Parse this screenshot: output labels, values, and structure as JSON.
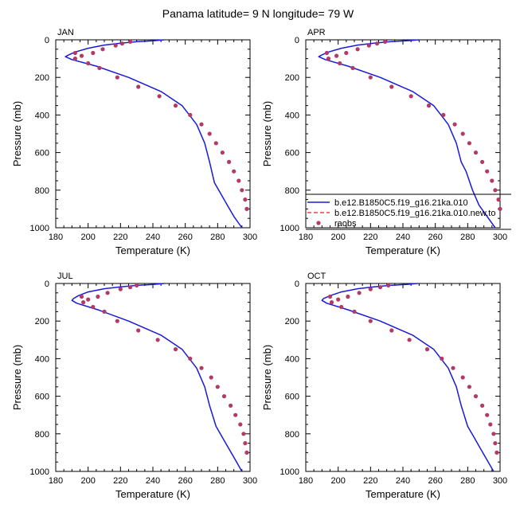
{
  "figure": {
    "title": "Panama  latitude= 9 N longitude= 79 W"
  },
  "legend": {
    "entries": [
      {
        "label": "b.e12.B1850C5.f19_g16.21ka.010",
        "color": "#1a1adb",
        "style": "solid"
      },
      {
        "label": "b.e12.B1850C5.f19_g16.21ka.010.new.to",
        "color": "#dd2222",
        "style": "dashed"
      },
      {
        "label": "raobs",
        "color": "#b23a66",
        "style": "marker"
      }
    ]
  },
  "chart_data": [
    {
      "type": "line",
      "panel": "JAN",
      "xlabel": "Temperature (K)",
      "ylabel": "Pressure (mb)",
      "xlim": [
        180,
        300
      ],
      "ylim": [
        1000,
        0
      ],
      "y_reversed": true,
      "xticks": [
        180,
        200,
        220,
        240,
        260,
        280,
        300
      ],
      "yticks": [
        0,
        200,
        400,
        600,
        800,
        1000
      ],
      "series": [
        {
          "name": "b.e12.B1850C5.f19_g16.21ka.010",
          "kind": "line",
          "x": [
            247,
            240,
            230,
            220,
            210,
            200,
            192,
            188,
            186,
            190,
            205,
            225,
            245,
            258,
            267,
            272,
            275,
            278,
            282,
            286,
            290,
            295
          ],
          "y": [
            0,
            5,
            10,
            18,
            28,
            45,
            65,
            80,
            90,
            105,
            140,
            200,
            275,
            350,
            450,
            550,
            650,
            760,
            820,
            880,
            940,
            1000
          ]
        },
        {
          "name": "b.e12.B1850C5.f19_g16.21ka.010.new.to",
          "kind": "line",
          "x": [
            247,
            240,
            230,
            220,
            210,
            200,
            192,
            188,
            186,
            190,
            205,
            225,
            245,
            258,
            267,
            272,
            275,
            278,
            282,
            286,
            290,
            295
          ],
          "y": [
            0,
            5,
            10,
            18,
            28,
            45,
            65,
            80,
            90,
            105,
            140,
            200,
            275,
            350,
            450,
            550,
            650,
            760,
            820,
            880,
            940,
            1000
          ]
        },
        {
          "name": "raobs",
          "kind": "markers",
          "x": [
            226,
            221,
            217,
            209,
            203,
            196,
            192,
            192,
            200,
            207,
            218,
            231,
            244,
            254,
            263,
            270,
            275,
            279,
            283,
            287,
            290,
            293,
            295,
            297,
            298
          ],
          "y": [
            10,
            20,
            30,
            50,
            70,
            85,
            100,
            70,
            125,
            150,
            200,
            250,
            300,
            350,
            400,
            450,
            500,
            550,
            600,
            650,
            700,
            750,
            800,
            850,
            900
          ]
        }
      ]
    },
    {
      "type": "line",
      "panel": "APR",
      "xlabel": "Temperature (K)",
      "ylabel": "Pressure (mb)",
      "xlim": [
        180,
        300
      ],
      "ylim": [
        1000,
        0
      ],
      "y_reversed": true,
      "xticks": [
        180,
        200,
        220,
        240,
        260,
        280,
        300
      ],
      "yticks": [
        0,
        200,
        400,
        600,
        800,
        1000
      ],
      "series": [
        {
          "name": "b.e12.B1850C5.f19_g16.21ka.010",
          "kind": "line",
          "x": [
            250,
            242,
            232,
            222,
            212,
            202,
            194,
            190,
            188,
            192,
            206,
            226,
            246,
            259,
            268,
            273,
            276,
            279,
            283,
            287,
            292,
            297
          ],
          "y": [
            0,
            5,
            10,
            18,
            28,
            45,
            65,
            80,
            90,
            105,
            140,
            200,
            275,
            350,
            450,
            550,
            650,
            700,
            800,
            880,
            940,
            1000
          ]
        },
        {
          "name": "b.e12.B1850C5.f19_g16.21ka.010.new.to",
          "kind": "line",
          "x": [
            250,
            242,
            232,
            222,
            212,
            202,
            194,
            190,
            188,
            192,
            206,
            226,
            246,
            259,
            268,
            273,
            276,
            279,
            283,
            287,
            292,
            297
          ],
          "y": [
            0,
            5,
            10,
            18,
            28,
            45,
            65,
            80,
            90,
            105,
            140,
            200,
            275,
            350,
            450,
            550,
            650,
            700,
            800,
            880,
            940,
            1000
          ]
        },
        {
          "name": "raobs",
          "kind": "markers",
          "x": [
            229,
            224,
            219,
            212,
            205,
            199,
            194,
            193,
            201,
            209,
            220,
            233,
            245,
            256,
            265,
            272,
            277,
            281,
            285,
            289,
            292,
            295,
            297,
            299,
            300
          ],
          "y": [
            10,
            20,
            30,
            50,
            70,
            85,
            100,
            70,
            125,
            150,
            200,
            250,
            300,
            350,
            400,
            450,
            500,
            550,
            600,
            650,
            700,
            750,
            800,
            850,
            900
          ]
        }
      ]
    },
    {
      "type": "line",
      "panel": "JUL",
      "xlabel": "Temperature (K)",
      "ylabel": "Pressure (mb)",
      "xlim": [
        180,
        300
      ],
      "ylim": [
        1000,
        0
      ],
      "y_reversed": true,
      "xticks": [
        180,
        200,
        220,
        240,
        260,
        280,
        300
      ],
      "yticks": [
        0,
        200,
        400,
        600,
        800,
        1000
      ],
      "series": [
        {
          "name": "b.e12.B1850C5.f19_g16.21ka.010",
          "kind": "line",
          "x": [
            247,
            240,
            230,
            220,
            210,
            200,
            194,
            191,
            190,
            193,
            206,
            225,
            245,
            258,
            267,
            272,
            275,
            279,
            283,
            287,
            291,
            295
          ],
          "y": [
            0,
            5,
            10,
            18,
            28,
            45,
            65,
            80,
            90,
            105,
            140,
            200,
            275,
            350,
            450,
            550,
            650,
            760,
            820,
            880,
            940,
            1000
          ]
        },
        {
          "name": "b.e12.B1850C5.f19_g16.21ka.010.new.to",
          "kind": "line",
          "x": [
            247,
            240,
            230,
            220,
            210,
            200,
            194,
            191,
            190,
            193,
            206,
            225,
            245,
            258,
            267,
            272,
            275,
            279,
            283,
            287,
            291,
            295
          ],
          "y": [
            0,
            5,
            10,
            18,
            28,
            45,
            65,
            80,
            90,
            105,
            140,
            200,
            275,
            350,
            450,
            550,
            650,
            760,
            820,
            880,
            940,
            1000
          ]
        },
        {
          "name": "raobs",
          "kind": "markers",
          "x": [
            230,
            226,
            220,
            212,
            206,
            200,
            197,
            196,
            203,
            210,
            218,
            231,
            243,
            254,
            263,
            270,
            276,
            280,
            284,
            288,
            291,
            294,
            296,
            297,
            298
          ],
          "y": [
            10,
            20,
            30,
            50,
            70,
            85,
            100,
            70,
            125,
            150,
            200,
            250,
            300,
            350,
            400,
            450,
            500,
            550,
            600,
            650,
            700,
            750,
            800,
            850,
            900
          ]
        }
      ]
    },
    {
      "type": "line",
      "panel": "OCT",
      "xlabel": "Temperature (K)",
      "ylabel": "Pressure (mb)",
      "xlim": [
        180,
        300
      ],
      "ylim": [
        1000,
        0
      ],
      "y_reversed": true,
      "xticks": [
        180,
        200,
        220,
        240,
        260,
        280,
        300
      ],
      "yticks": [
        0,
        200,
        400,
        600,
        800,
        1000
      ],
      "series": [
        {
          "name": "b.e12.B1850C5.f19_g16.21ka.010",
          "kind": "line",
          "x": [
            249,
            242,
            232,
            222,
            212,
            202,
            195,
            191,
            190,
            193,
            206,
            226,
            246,
            259,
            268,
            273,
            276,
            280,
            284,
            288,
            292,
            296
          ],
          "y": [
            0,
            5,
            10,
            18,
            28,
            45,
            65,
            80,
            90,
            105,
            140,
            200,
            275,
            350,
            450,
            550,
            650,
            760,
            820,
            880,
            940,
            1000
          ]
        },
        {
          "name": "b.e12.B1850C5.f19_g16.21ka.010.new.to",
          "kind": "line",
          "x": [
            249,
            242,
            232,
            222,
            212,
            202,
            195,
            191,
            190,
            193,
            206,
            226,
            246,
            259,
            268,
            273,
            276,
            280,
            284,
            288,
            292,
            296
          ],
          "y": [
            0,
            5,
            10,
            18,
            28,
            45,
            65,
            80,
            90,
            105,
            140,
            200,
            275,
            350,
            450,
            550,
            650,
            760,
            820,
            880,
            940,
            1000
          ]
        },
        {
          "name": "raobs",
          "kind": "markers",
          "x": [
            231,
            226,
            220,
            213,
            206,
            200,
            196,
            195,
            202,
            210,
            220,
            233,
            244,
            255,
            264,
            271,
            277,
            281,
            285,
            289,
            292,
            294,
            296,
            297,
            298
          ],
          "y": [
            10,
            20,
            30,
            50,
            70,
            85,
            100,
            70,
            125,
            150,
            200,
            250,
            300,
            350,
            400,
            450,
            500,
            550,
            600,
            650,
            700,
            750,
            800,
            850,
            900
          ]
        }
      ]
    }
  ]
}
